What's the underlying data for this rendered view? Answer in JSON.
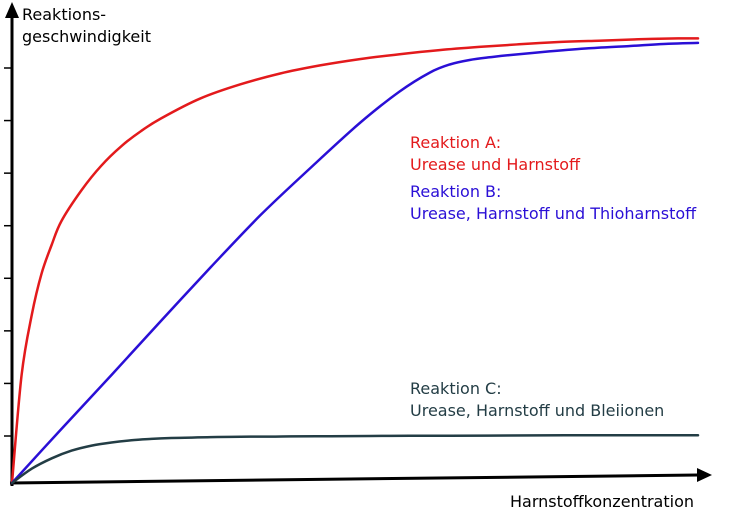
{
  "chart_data": {
    "type": "line",
    "title": "",
    "ylabel_lines": [
      "Reaktions-",
      "geschwindigkeit"
    ],
    "xlabel": "Harnstoffkonzentration",
    "xlim": [
      0,
      100
    ],
    "ylim": [
      0,
      100
    ],
    "grid": false,
    "ticks": {
      "y_count": 8,
      "labels": false
    },
    "series": [
      {
        "id": "A",
        "color": "#e31a1c",
        "label_lines": [
          "Reaktion A:",
          "Urease und Harnstoff"
        ],
        "x": [
          0,
          1.4,
          2.9,
          4.3,
          5.8,
          7.2,
          10.1,
          13.0,
          15.9,
          18.8,
          21.7,
          27.5,
          33.3,
          39.1,
          44.9,
          50.7,
          56.5,
          62.3,
          68.1,
          73.9,
          79.7,
          85.5,
          91.3,
          97.1,
          100
        ],
        "y": [
          0,
          24.0,
          37.5,
          46.5,
          53.0,
          58.2,
          65.0,
          70.5,
          74.8,
          78.2,
          81.0,
          85.5,
          88.6,
          91.0,
          92.8,
          94.2,
          95.3,
          96.2,
          96.9,
          97.5,
          98.0,
          98.3,
          98.6,
          98.8,
          98.8
        ]
      },
      {
        "id": "B",
        "color": "#2a0fd6",
        "label_lines": [
          "Reaktion B:",
          "Urease, Harnstoff und Thioharnstoff"
        ],
        "x": [
          0,
          7.2,
          14.5,
          21.7,
          29.0,
          36.2,
          43.5,
          50.7,
          56.5,
          60.9,
          63.8,
          66.7,
          69.6,
          72.5,
          78.3,
          84.1,
          89.9,
          95.7,
          100
        ],
        "y": [
          0,
          12.0,
          24.0,
          36.0,
          48.0,
          59.5,
          70.0,
          80.0,
          87.0,
          91.2,
          93.0,
          94.0,
          94.6,
          95.1,
          95.9,
          96.6,
          97.1,
          97.6,
          97.8
        ]
      },
      {
        "id": "C",
        "color": "#233d45",
        "label_lines": [
          "Reaktion C:",
          "Urease, Harnstoff und Bleiionen"
        ],
        "x": [
          0,
          2.9,
          5.8,
          8.7,
          11.6,
          14.5,
          17.4,
          20.3,
          23.2,
          26.1,
          29.0,
          31.9,
          34.8,
          37.7,
          40.6,
          46.4,
          52.2,
          58.0,
          63.8,
          72.5,
          81.2,
          89.9,
          98.6,
          100
        ],
        "y": [
          0,
          3.2,
          5.5,
          7.2,
          8.3,
          9.0,
          9.5,
          9.8,
          10.0,
          10.1,
          10.2,
          10.25,
          10.3,
          10.3,
          10.35,
          10.4,
          10.45,
          10.5,
          10.5,
          10.55,
          10.6,
          10.6,
          10.6,
          10.6
        ]
      }
    ]
  }
}
